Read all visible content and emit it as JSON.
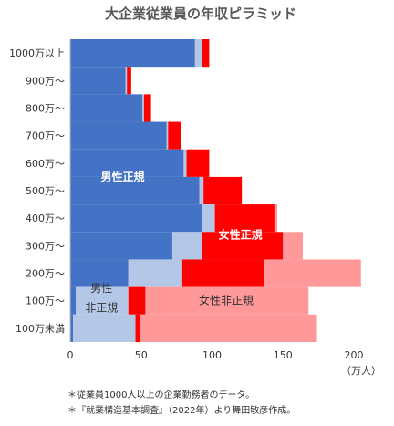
{
  "chart_data": {
    "type": "bar",
    "orientation": "horizontal-stacked",
    "title": "大企業従業員の年収ピラミッド",
    "categories": [
      "1000万以上",
      "900万〜",
      "800万〜",
      "700万〜",
      "600万〜",
      "500万〜",
      "400万〜",
      "300万〜",
      "200万〜",
      "100万〜",
      "100万未満"
    ],
    "series": [
      {
        "color": "#4472C4",
        "values": [
          88,
          39,
          51,
          68,
          80,
          91,
          93,
          72,
          41,
          4,
          2
        ]
      },
      {
        "color": "#B4C7E7",
        "values": [
          5,
          1,
          1,
          1,
          2,
          3,
          9,
          21,
          38,
          37,
          44
        ]
      },
      {
        "color": "#FF0000",
        "values": [
          5,
          3,
          5,
          9,
          16,
          27,
          42,
          57,
          58,
          12,
          3
        ]
      },
      {
        "color": "#FF9999",
        "values": [
          0,
          0,
          0,
          0,
          0,
          0,
          2,
          14,
          68,
          115,
          125
        ]
      }
    ],
    "xlim": [
      0,
      200
    ],
    "xticks": [
      0,
      50,
      100,
      150,
      200
    ],
    "xunit": "（万人）",
    "annotations": [
      {
        "text": "男性正規",
        "color": "#ffffff",
        "bold": true
      },
      {
        "text": "女性正規",
        "color": "#ffffff",
        "bold": true
      },
      {
        "text": "男性",
        "color": "#333333",
        "bold": false
      },
      {
        "text": "非正規",
        "color": "#333333",
        "bold": false
      },
      {
        "text": "女性非正規",
        "color": "#333333",
        "bold": false
      }
    ]
  },
  "footnotes": [
    "＊従業員1000人以上の企業勤務者のデータ。",
    "＊『就業構造基本調査』（2022年）より舞田敏彦作成。"
  ]
}
